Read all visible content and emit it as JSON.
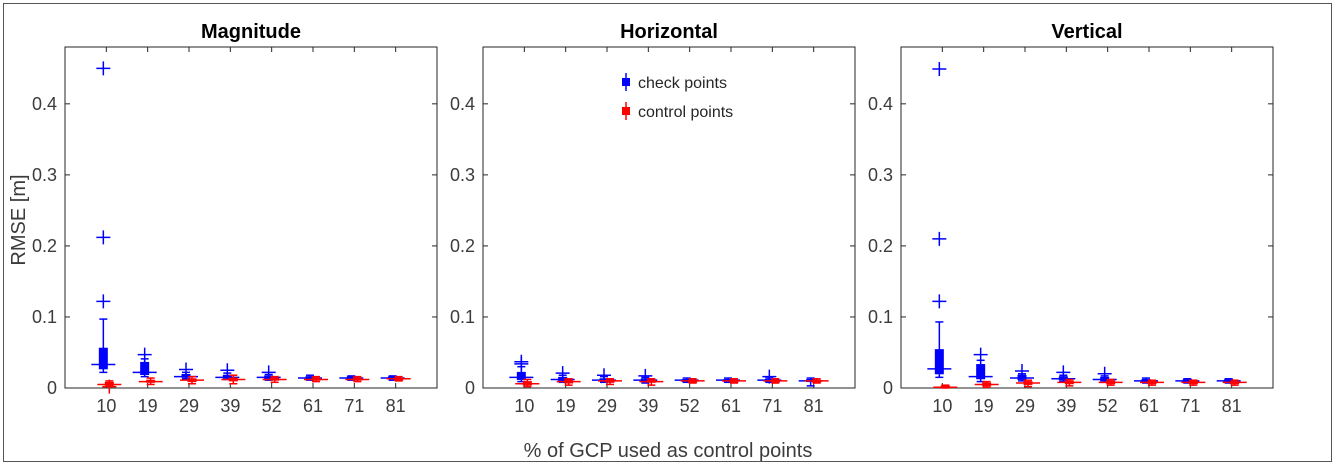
{
  "figure": {
    "xlabel": "% of GCP used as control points",
    "ylabel": "RMSE [m]"
  },
  "colors": {
    "check": "#0000ff",
    "control": "#ff0000",
    "axis": "#262626",
    "tick_text": "#3c3c3c"
  },
  "chart_data": [
    {
      "type": "boxplot",
      "title": "Magnitude",
      "categories": [
        "10",
        "19",
        "29",
        "39",
        "52",
        "61",
        "71",
        "81"
      ],
      "ylim": [
        0,
        0.48
      ],
      "yticks": [
        "0",
        "0.1",
        "0.2",
        "0.3",
        "0.4"
      ],
      "ylabel": "RMSE [m]",
      "xlabel": "",
      "series": [
        {
          "key": "check",
          "boxes": [
            {
              "wlo": 0.022,
              "q1": 0.027,
              "med": 0.033,
              "q3": 0.056,
              "whi": 0.097,
              "outliers": [
                0.122,
                0.212,
                0.45
              ]
            },
            {
              "wlo": 0.016,
              "q1": 0.019,
              "med": 0.022,
              "q3": 0.036,
              "whi": 0.041,
              "outliers": [
                0.047
              ]
            },
            {
              "wlo": 0.013,
              "q1": 0.015,
              "med": 0.016,
              "q3": 0.019,
              "whi": 0.022,
              "outliers": [
                0.026
              ]
            },
            {
              "wlo": 0.012,
              "q1": 0.014,
              "med": 0.015,
              "q3": 0.018,
              "whi": 0.021,
              "outliers": [
                0.025
              ]
            },
            {
              "wlo": 0.011,
              "q1": 0.013,
              "med": 0.015,
              "q3": 0.017,
              "whi": 0.019,
              "outliers": [
                0.022
              ]
            },
            {
              "wlo": 0.011,
              "q1": 0.013,
              "med": 0.014,
              "q3": 0.016,
              "whi": 0.018,
              "outliers": []
            },
            {
              "wlo": 0.011,
              "q1": 0.013,
              "med": 0.014,
              "q3": 0.016,
              "whi": 0.017,
              "outliers": []
            },
            {
              "wlo": 0.011,
              "q1": 0.013,
              "med": 0.014,
              "q3": 0.016,
              "whi": 0.017,
              "outliers": []
            }
          ]
        },
        {
          "key": "control",
          "boxes": [
            {
              "wlo": 0.003,
              "q1": 0.004,
              "med": 0.005,
              "q3": 0.008,
              "whi": 0.01,
              "outliers": [
                0.002
              ]
            },
            {
              "wlo": 0.005,
              "q1": 0.008,
              "med": 0.009,
              "q3": 0.011,
              "whi": 0.014,
              "outliers": []
            },
            {
              "wlo": 0.006,
              "q1": 0.009,
              "med": 0.011,
              "q3": 0.013,
              "whi": 0.016,
              "outliers": []
            },
            {
              "wlo": 0.006,
              "q1": 0.01,
              "med": 0.012,
              "q3": 0.014,
              "whi": 0.018,
              "outliers": []
            },
            {
              "wlo": 0.008,
              "q1": 0.011,
              "med": 0.012,
              "q3": 0.014,
              "whi": 0.016,
              "outliers": []
            },
            {
              "wlo": 0.009,
              "q1": 0.011,
              "med": 0.012,
              "q3": 0.014,
              "whi": 0.016,
              "outliers": []
            },
            {
              "wlo": 0.009,
              "q1": 0.011,
              "med": 0.012,
              "q3": 0.014,
              "whi": 0.016,
              "outliers": []
            },
            {
              "wlo": 0.01,
              "q1": 0.012,
              "med": 0.013,
              "q3": 0.014,
              "whi": 0.016,
              "outliers": []
            }
          ]
        }
      ]
    },
    {
      "type": "boxplot",
      "title": "Horizontal",
      "categories": [
        "10",
        "19",
        "29",
        "39",
        "52",
        "61",
        "71",
        "81"
      ],
      "ylim": [
        0,
        0.48
      ],
      "yticks": [
        "0",
        "0.1",
        "0.2",
        "0.3",
        "0.4"
      ],
      "ylabel": "",
      "xlabel": "",
      "legend": {
        "position": "top-center",
        "entries": [
          "check points",
          "control points"
        ]
      },
      "series": [
        {
          "key": "check",
          "boxes": [
            {
              "wlo": 0.009,
              "q1": 0.012,
              "med": 0.015,
              "q3": 0.022,
              "whi": 0.03,
              "outliers": [
                0.034,
                0.037
              ]
            },
            {
              "wlo": 0.008,
              "q1": 0.01,
              "med": 0.012,
              "q3": 0.015,
              "whi": 0.018,
              "outliers": [
                0.021
              ]
            },
            {
              "wlo": 0.008,
              "q1": 0.01,
              "med": 0.011,
              "q3": 0.013,
              "whi": 0.016,
              "outliers": [
                0.018
              ]
            },
            {
              "wlo": 0.007,
              "q1": 0.009,
              "med": 0.011,
              "q3": 0.013,
              "whi": 0.015,
              "outliers": [
                0.017
              ]
            },
            {
              "wlo": 0.008,
              "q1": 0.009,
              "med": 0.011,
              "q3": 0.012,
              "whi": 0.014,
              "outliers": []
            },
            {
              "wlo": 0.008,
              "q1": 0.009,
              "med": 0.011,
              "q3": 0.012,
              "whi": 0.014,
              "outliers": []
            },
            {
              "wlo": 0.008,
              "q1": 0.009,
              "med": 0.011,
              "q3": 0.012,
              "whi": 0.014,
              "outliers": [
                0.016
              ]
            },
            {
              "wlo": 0.003,
              "q1": 0.009,
              "med": 0.01,
              "q3": 0.012,
              "whi": 0.014,
              "outliers": []
            }
          ]
        },
        {
          "key": "control",
          "boxes": [
            {
              "wlo": 0.002,
              "q1": 0.004,
              "med": 0.006,
              "q3": 0.009,
              "whi": 0.012,
              "outliers": []
            },
            {
              "wlo": 0.004,
              "q1": 0.007,
              "med": 0.009,
              "q3": 0.011,
              "whi": 0.013,
              "outliers": []
            },
            {
              "wlo": 0.005,
              "q1": 0.008,
              "med": 0.01,
              "q3": 0.011,
              "whi": 0.013,
              "outliers": []
            },
            {
              "wlo": 0.004,
              "q1": 0.008,
              "med": 0.009,
              "q3": 0.011,
              "whi": 0.013,
              "outliers": []
            },
            {
              "wlo": 0.007,
              "q1": 0.009,
              "med": 0.01,
              "q3": 0.011,
              "whi": 0.013,
              "outliers": []
            },
            {
              "wlo": 0.007,
              "q1": 0.009,
              "med": 0.01,
              "q3": 0.011,
              "whi": 0.013,
              "outliers": []
            },
            {
              "wlo": 0.007,
              "q1": 0.009,
              "med": 0.01,
              "q3": 0.011,
              "whi": 0.013,
              "outliers": []
            },
            {
              "wlo": 0.007,
              "q1": 0.009,
              "med": 0.01,
              "q3": 0.011,
              "whi": 0.013,
              "outliers": []
            }
          ]
        }
      ]
    },
    {
      "type": "boxplot",
      "title": "Vertical",
      "categories": [
        "10",
        "19",
        "29",
        "39",
        "52",
        "61",
        "71",
        "81"
      ],
      "ylim": [
        0,
        0.48
      ],
      "yticks": [
        "0",
        "0.1",
        "0.2",
        "0.3",
        "0.4"
      ],
      "ylabel": "",
      "xlabel": "",
      "series": [
        {
          "key": "check",
          "boxes": [
            {
              "wlo": 0.015,
              "q1": 0.02,
              "med": 0.027,
              "q3": 0.054,
              "whi": 0.093,
              "outliers": [
                0.122,
                0.21,
                0.449
              ]
            },
            {
              "wlo": 0.009,
              "q1": 0.013,
              "med": 0.016,
              "q3": 0.033,
              "whi": 0.039,
              "outliers": [
                0.047
              ]
            },
            {
              "wlo": 0.01,
              "q1": 0.012,
              "med": 0.014,
              "q3": 0.018,
              "whi": 0.02,
              "outliers": [
                0.024
              ]
            },
            {
              "wlo": 0.009,
              "q1": 0.011,
              "med": 0.013,
              "q3": 0.016,
              "whi": 0.018,
              "outliers": [
                0.022
              ]
            },
            {
              "wlo": 0.008,
              "q1": 0.01,
              "med": 0.012,
              "q3": 0.015,
              "whi": 0.017,
              "outliers": [
                0.02
              ]
            },
            {
              "wlo": 0.007,
              "q1": 0.009,
              "med": 0.01,
              "q3": 0.012,
              "whi": 0.014,
              "outliers": []
            },
            {
              "wlo": 0.007,
              "q1": 0.009,
              "med": 0.01,
              "q3": 0.012,
              "whi": 0.013,
              "outliers": []
            },
            {
              "wlo": 0.007,
              "q1": 0.009,
              "med": 0.01,
              "q3": 0.012,
              "whi": 0.013,
              "outliers": []
            }
          ]
        },
        {
          "key": "control",
          "boxes": [
            {
              "wlo": 0.0,
              "q1": 0.001,
              "med": 0.001,
              "q3": 0.003,
              "whi": 0.004,
              "outliers": []
            },
            {
              "wlo": 0.001,
              "q1": 0.003,
              "med": 0.005,
              "q3": 0.007,
              "whi": 0.009,
              "outliers": []
            },
            {
              "wlo": 0.002,
              "q1": 0.005,
              "med": 0.007,
              "q3": 0.009,
              "whi": 0.011,
              "outliers": []
            },
            {
              "wlo": 0.003,
              "q1": 0.006,
              "med": 0.008,
              "q3": 0.01,
              "whi": 0.012,
              "outliers": []
            },
            {
              "wlo": 0.004,
              "q1": 0.006,
              "med": 0.008,
              "q3": 0.01,
              "whi": 0.012,
              "outliers": []
            },
            {
              "wlo": 0.004,
              "q1": 0.006,
              "med": 0.008,
              "q3": 0.01,
              "whi": 0.011,
              "outliers": []
            },
            {
              "wlo": 0.004,
              "q1": 0.006,
              "med": 0.008,
              "q3": 0.01,
              "whi": 0.011,
              "outliers": []
            },
            {
              "wlo": 0.004,
              "q1": 0.006,
              "med": 0.008,
              "q3": 0.009,
              "whi": 0.011,
              "outliers": []
            }
          ]
        }
      ]
    }
  ]
}
